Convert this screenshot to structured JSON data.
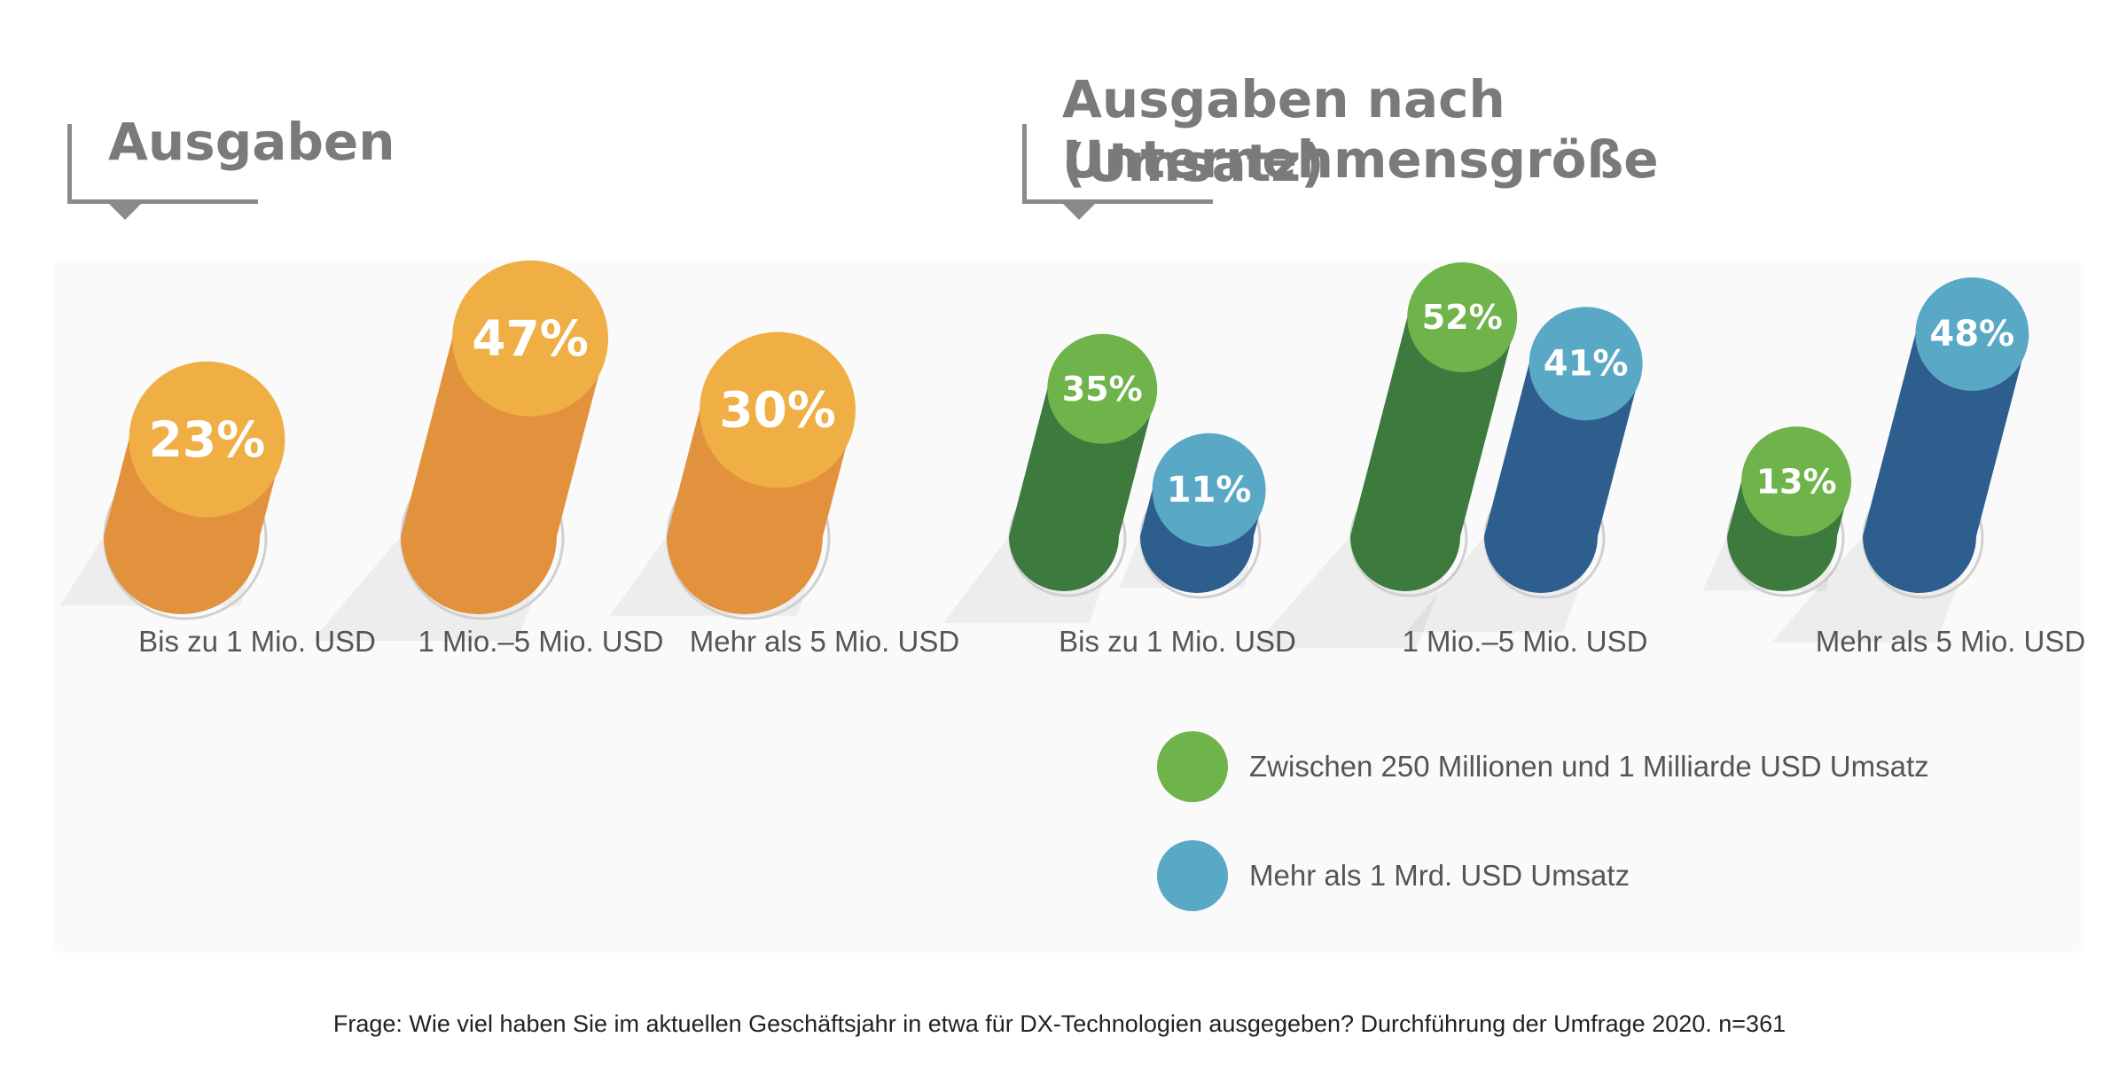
{
  "titles": {
    "left": "Ausgaben",
    "right_line1": "Ausgaben nach Unternehmensgröße",
    "right_line2": "(Umsatz)"
  },
  "colors": {
    "orange_body": "#E2913C",
    "orange_top": "#EFAF45",
    "green_body": "#3D7A3E",
    "green_top": "#6FB34B",
    "blue_body": "#2E5E8E",
    "blue_top": "#58A8C6"
  },
  "chart_data": [
    {
      "type": "bar",
      "title": "Ausgaben",
      "categories": [
        "Bis zu 1 Mio. USD",
        "1 Mio.–5 Mio. USD",
        "Mehr als 5 Mio. USD"
      ],
      "values": [
        23,
        47,
        30
      ],
      "labels": [
        "23%",
        "47%",
        "30%"
      ],
      "unit": "%"
    },
    {
      "type": "bar",
      "title": "Ausgaben nach Unternehmensgröße (Umsatz)",
      "categories": [
        "Bis zu 1 Mio. USD",
        "1 Mio.–5 Mio. USD",
        "Mehr als 5 Mio. USD"
      ],
      "series": [
        {
          "name": "Zwischen 250 Millionen und 1 Milliarde USD Umsatz",
          "values": [
            35,
            52,
            13
          ],
          "labels": [
            "35%",
            "52%",
            "13%"
          ]
        },
        {
          "name": "Mehr als 1 Mrd. USD Umsatz",
          "values": [
            11,
            41,
            48
          ],
          "labels": [
            "11%",
            "41%",
            "48%"
          ]
        }
      ],
      "legend": "bottom-right",
      "unit": "%"
    }
  ],
  "legend": {
    "items": [
      {
        "label": "Zwischen 250 Millionen und 1 Milliarde USD Umsatz"
      },
      {
        "label": "Mehr als 1 Mrd. USD Umsatz"
      }
    ]
  },
  "footnote": "Frage: Wie viel haben Sie im aktuellen Geschäftsjahr in etwa für DX-Technologien ausgegeben? Durchführung der Umfrage 2020. n=361"
}
